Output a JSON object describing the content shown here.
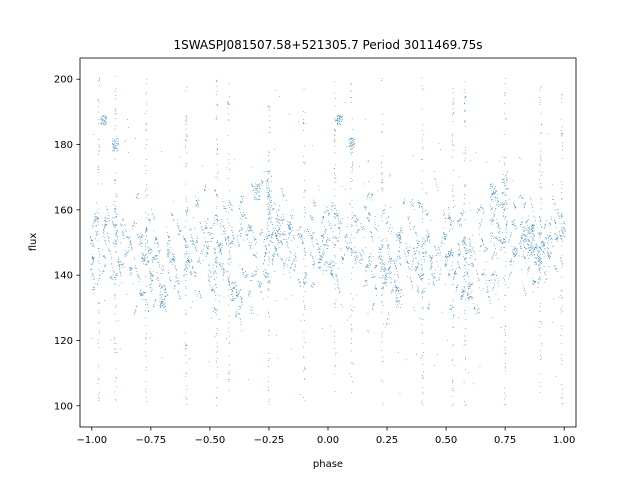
{
  "chart_data": {
    "type": "scatter",
    "title": "1SWASPJ081507.58+521305.7 Period 3011469.75s",
    "xlabel": "phase",
    "ylabel": "flux",
    "xlim": [
      -1.05,
      1.05
    ],
    "ylim": [
      93.5,
      206.5
    ],
    "x_ticks": [
      -1.0,
      -0.75,
      -0.5,
      -0.25,
      0.0,
      0.25,
      0.5,
      0.75,
      1.0
    ],
    "x_tick_labels": [
      "−1.00",
      "−0.75",
      "−0.50",
      "−0.25",
      "0.00",
      "0.25",
      "0.50",
      "0.75",
      "1.00"
    ],
    "y_ticks": [
      100,
      120,
      140,
      160,
      180,
      200
    ],
    "y_tick_labels": [
      "100",
      "120",
      "140",
      "160",
      "180",
      "200"
    ],
    "grid": false,
    "marker_color": "#1f77b4",
    "series": [
      {
        "profile_x": [
          -1.0,
          -0.95,
          -0.9,
          -0.85,
          -0.8,
          -0.75,
          -0.7,
          -0.65,
          -0.6,
          -0.55,
          -0.5,
          -0.45,
          -0.4,
          -0.35,
          -0.3,
          -0.25,
          -0.2,
          -0.15,
          -0.1,
          -0.05,
          0.0,
          0.05,
          0.1,
          0.15,
          0.2,
          0.25,
          0.3,
          0.35,
          0.4,
          0.45,
          0.5,
          0.55,
          0.6,
          0.65,
          0.7,
          0.75,
          0.8,
          0.85,
          0.9,
          0.95,
          1.0
        ],
        "profile_center": [
          151,
          149,
          150,
          148,
          147,
          145,
          144,
          146,
          147,
          148,
          149,
          147,
          146,
          147,
          150,
          153,
          151,
          149,
          150,
          151,
          151,
          149,
          150,
          148,
          147,
          145,
          144,
          146,
          147,
          148,
          149,
          147,
          146,
          147,
          150,
          153,
          151,
          149,
          150,
          151,
          151
        ],
        "profile_spread": [
          9,
          10,
          9,
          10,
          11,
          12,
          12,
          11,
          10,
          10,
          10,
          11,
          12,
          12,
          11,
          12,
          10,
          9,
          9,
          9,
          9,
          10,
          9,
          10,
          11,
          12,
          12,
          11,
          10,
          10,
          10,
          11,
          12,
          12,
          11,
          12,
          10,
          9,
          9,
          9,
          9
        ],
        "y_min": 100,
        "y_max": 201,
        "outlier_clumps": [
          {
            "x": -0.95,
            "y": [
              186,
              189
            ]
          },
          {
            "x": -0.9,
            "y": [
              178,
              182
            ]
          },
          {
            "x": 0.05,
            "y": [
              186,
              189
            ]
          },
          {
            "x": 0.1,
            "y": [
              178,
              182
            ]
          },
          {
            "x": -0.25,
            "y": [
              160,
              172
            ]
          },
          {
            "x": 0.75,
            "y": [
              160,
              172
            ]
          },
          {
            "x": -0.3,
            "y": [
              163,
              168
            ]
          },
          {
            "x": 0.7,
            "y": [
              163,
              168
            ]
          },
          {
            "x": -0.7,
            "y": [
              130,
              137
            ]
          },
          {
            "x": 0.3,
            "y": [
              130,
              137
            ]
          },
          {
            "x": -0.4,
            "y": [
              132,
              138
            ]
          },
          {
            "x": 0.6,
            "y": [
              132,
              138
            ]
          }
        ],
        "spike_x": [
          -0.97,
          -0.9,
          -0.77,
          -0.6,
          -0.47,
          -0.42,
          -0.25,
          -0.1,
          0.03,
          0.1,
          0.23,
          0.4,
          0.53,
          0.58,
          0.75,
          0.9,
          0.99
        ]
      }
    ]
  }
}
